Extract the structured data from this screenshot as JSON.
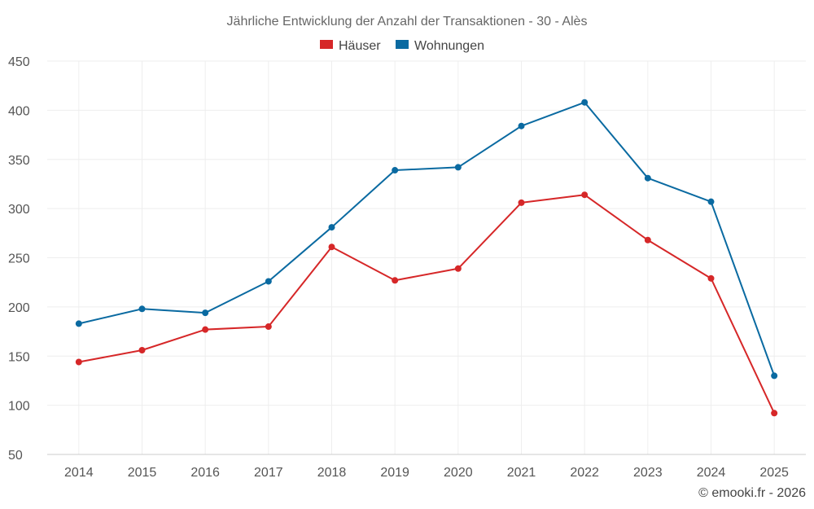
{
  "chart_data": {
    "type": "line",
    "title": "Jährliche Entwicklung der Anzahl der Transaktionen - 30 - Alès",
    "categories": [
      "2014",
      "2015",
      "2016",
      "2017",
      "2018",
      "2019",
      "2020",
      "2021",
      "2022",
      "2023",
      "2024",
      "2025"
    ],
    "series": [
      {
        "name": "Häuser",
        "color": "#d62728",
        "values": [
          144,
          156,
          177,
          180,
          261,
          227,
          239,
          306,
          314,
          268,
          229,
          92
        ]
      },
      {
        "name": "Wohnungen",
        "color": "#0a6aa1",
        "values": [
          183,
          198,
          194,
          226,
          281,
          339,
          342,
          384,
          408,
          331,
          307,
          130
        ]
      }
    ],
    "ylim": [
      50,
      450
    ],
    "yticks": [
      50,
      100,
      150,
      200,
      250,
      300,
      350,
      400,
      450
    ],
    "grid": true,
    "legend": "top-center",
    "xlabel": "",
    "ylabel": ""
  },
  "credit": "© emooki.fr - 2026"
}
